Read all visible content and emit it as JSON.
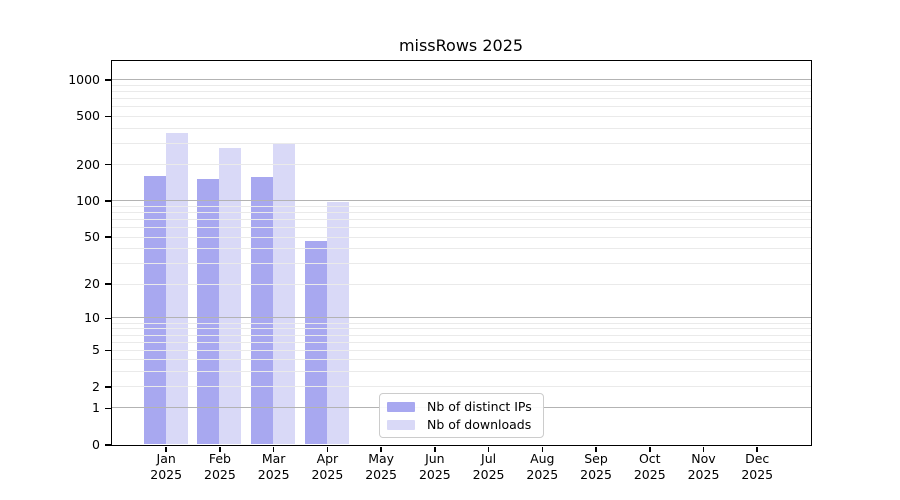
{
  "chart_data": {
    "type": "bar",
    "title": "missRows 2025",
    "x_months": [
      "Jan",
      "Feb",
      "Mar",
      "Apr",
      "May",
      "Jun",
      "Jul",
      "Aug",
      "Sep",
      "Oct",
      "Nov",
      "Dec"
    ],
    "x_year": "2025",
    "series": [
      {
        "name": "Nb of distinct IPs",
        "color": "#a8a8f0",
        "values": [
          161,
          150,
          158,
          46,
          0,
          0,
          0,
          0,
          0,
          0,
          0,
          0
        ]
      },
      {
        "name": "Nb of downloads",
        "color": "#d9d9f7",
        "values": [
          365,
          270,
          296,
          98,
          0,
          0,
          0,
          0,
          0,
          0,
          0,
          0
        ]
      }
    ],
    "y_scale": "log10(1+v)",
    "y_ticks": [
      0,
      1,
      2,
      5,
      10,
      20,
      50,
      100,
      200,
      500,
      1000
    ],
    "ylim": [
      0,
      1430
    ],
    "grid": {
      "major_values": [
        1,
        10,
        100,
        1000
      ],
      "minor_values": [
        2,
        3,
        4,
        5,
        6,
        7,
        8,
        9,
        20,
        30,
        40,
        50,
        60,
        70,
        80,
        90,
        200,
        300,
        400,
        500,
        600,
        700,
        800,
        900
      ]
    },
    "legend_position": "lower-center",
    "xlabel": "",
    "ylabel": ""
  },
  "colors": {
    "background": "#ffffff",
    "axis": "#000000",
    "major_grid": "#b3b3b3",
    "minor_grid": "#eaeaea",
    "legend_border": "#cccccc",
    "text": "#000000"
  }
}
